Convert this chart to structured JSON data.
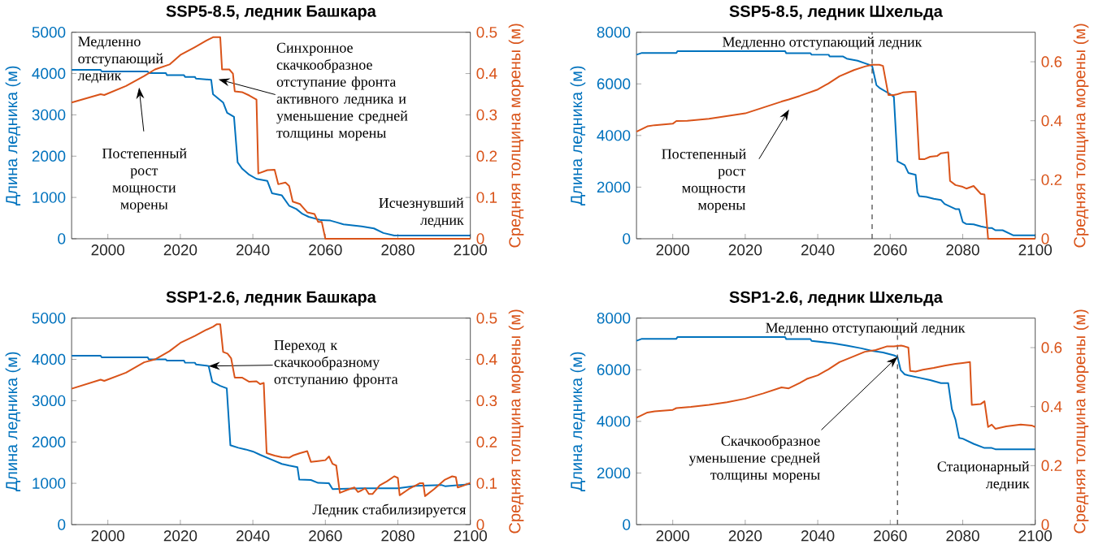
{
  "chart_data": [
    {
      "type": "line",
      "title": "SSP5-8.5, ледник Башкара",
      "ylabel": "Длина ледника (м)",
      "y2label": "Средняя толщина морены (м)",
      "xlim": [
        1990,
        2100
      ],
      "xticks": [
        2000,
        2020,
        2040,
        2060,
        2080,
        2100
      ],
      "ylim": [
        0,
        5000
      ],
      "yticks": [
        0,
        1000,
        2000,
        3000,
        4000,
        5000
      ],
      "y2lim": [
        0,
        0.5
      ],
      "y2ticks": [
        0,
        0.1,
        0.2,
        0.3,
        0.4,
        0.5
      ],
      "series": [
        {
          "color": "#0072bd",
          "x": [
            1990,
            1998,
            1998.3,
            2011,
            2011.3,
            2016,
            2016.3,
            2021,
            2021.3,
            2024,
            2024.3,
            2028.5,
            2029,
            2031.8,
            2032.9,
            2034.8,
            2035.8,
            2037,
            2039,
            2041,
            2044,
            2045.3,
            2048,
            2050,
            2052,
            2053.7,
            2055.4,
            2058.8,
            2061.4,
            2063,
            2065,
            2070,
            2073.4,
            2076,
            2079,
            2100
          ],
          "values": [
            4090,
            4090,
            4050,
            4050,
            4010,
            4010,
            3960,
            3960,
            3920,
            3920,
            3880,
            3850,
            3500,
            3300,
            3050,
            2950,
            1850,
            1700,
            1550,
            1450,
            1400,
            1100,
            1050,
            800,
            720,
            600,
            530,
            450,
            440,
            400,
            350,
            300,
            250,
            140,
            80,
            80
          ]
        },
        {
          "color": "#d95319",
          "axis": "y2",
          "x": [
            1990,
            1998,
            1999,
            2005,
            2010,
            2013,
            2017,
            2020,
            2024,
            2027,
            2029,
            2031,
            2031.5,
            2033.5,
            2034.5,
            2035,
            2037,
            2039,
            2041,
            2041.5,
            2044,
            2046,
            2047,
            2049,
            2050,
            2051,
            2053,
            2055,
            2057,
            2058,
            2059,
            2060,
            2100
          ],
          "values": [
            0.33,
            0.35,
            0.348,
            0.37,
            0.394,
            0.41,
            0.422,
            0.445,
            0.464,
            0.479,
            0.488,
            0.488,
            0.41,
            0.41,
            0.4,
            0.357,
            0.355,
            0.347,
            0.337,
            0.158,
            0.166,
            0.167,
            0.132,
            0.136,
            0.128,
            0.09,
            0.084,
            0.064,
            0.06,
            0.041,
            0.041,
            0,
            0
          ]
        }
      ],
      "annotations": [
        "Медленно отступающий ледник",
        "Постепенный рост мощности морены",
        "Синхронное скачкообразное отступание фронта активного ледника и уменьшение средней толщины морены",
        "Исчезнувший ледник"
      ]
    },
    {
      "type": "line",
      "title": "SSP5-8.5, ледник Шхельда",
      "ylabel": "Длина ледника (м)",
      "y2label": "Средняя толщина морены (м)",
      "xlim": [
        1990,
        2100
      ],
      "xticks": [
        2000,
        2020,
        2040,
        2060,
        2080,
        2100
      ],
      "ylim": [
        0,
        8000
      ],
      "yticks": [
        0,
        2000,
        4000,
        6000,
        8000
      ],
      "y2lim": [
        0,
        0.7
      ],
      "y2ticks": [
        0,
        0.2,
        0.4,
        0.6
      ],
      "series": [
        {
          "color": "#0072bd",
          "x": [
            1990,
            1991.5,
            2001,
            2001.3,
            2031,
            2031.3,
            2038,
            2038.3,
            2043,
            2043.3,
            2047,
            2048,
            2051,
            2053,
            2055,
            2056.2,
            2057,
            2060,
            2061,
            2062,
            2064,
            2065,
            2067,
            2067.5,
            2068,
            2070,
            2072,
            2074,
            2075,
            2078,
            2079,
            2080,
            2081,
            2083,
            2085,
            2087,
            2088,
            2089,
            2091,
            2094,
            2100
          ],
          "values": [
            7130,
            7200,
            7200,
            7270,
            7270,
            7190,
            7190,
            7130,
            7130,
            7060,
            7060,
            6980,
            6900,
            6800,
            6700,
            5950,
            5850,
            5600,
            5500,
            3000,
            2850,
            2550,
            2480,
            1800,
            1650,
            1620,
            1550,
            1500,
            1350,
            1150,
            1150,
            650,
            570,
            560,
            480,
            420,
            420,
            330,
            330,
            130,
            130
          ]
        },
        {
          "color": "#d95319",
          "axis": "y2",
          "x": [
            1990,
            1993,
            1995,
            2000,
            2001,
            2004,
            2010,
            2015,
            2020,
            2025,
            2030,
            2032,
            2035,
            2040,
            2043,
            2046,
            2050,
            2053,
            2055,
            2057,
            2058,
            2059.5,
            2061,
            2062,
            2063.5,
            2066,
            2067,
            2068,
            2069.5,
            2071,
            2073,
            2074,
            2076,
            2076.5,
            2078,
            2080,
            2081,
            2083,
            2085,
            2086,
            2087,
            2100
          ],
          "values": [
            0.363,
            0.381,
            0.385,
            0.39,
            0.399,
            0.4,
            0.407,
            0.416,
            0.425,
            0.445,
            0.465,
            0.472,
            0.484,
            0.506,
            0.527,
            0.551,
            0.572,
            0.584,
            0.59,
            0.59,
            0.586,
            0.487,
            0.487,
            0.49,
            0.496,
            0.498,
            0.498,
            0.27,
            0.27,
            0.278,
            0.281,
            0.29,
            0.293,
            0.196,
            0.182,
            0.176,
            0.17,
            0.179,
            0.152,
            0.15,
            0,
            0
          ]
        }
      ],
      "ref_lines": [
        {
          "axis": "x",
          "value": 2055,
          "color": "#404040",
          "line_style": "dashed"
        }
      ],
      "annotations": [
        "Медленно отступающий ледник",
        "Постепенный рост мощности морены"
      ]
    },
    {
      "type": "line",
      "title": "SSP1-2.6, ледник Башкара",
      "ylabel": "Длина ледника (м)",
      "y2label": "Средняя толщина морены (м)",
      "xlim": [
        1990,
        2100
      ],
      "xticks": [
        2000,
        2020,
        2040,
        2060,
        2080,
        2100
      ],
      "ylim": [
        0,
        5000
      ],
      "yticks": [
        0,
        1000,
        2000,
        3000,
        4000,
        5000
      ],
      "y2lim": [
        0,
        0.5
      ],
      "y2ticks": [
        0,
        0.1,
        0.2,
        0.3,
        0.4,
        0.5
      ],
      "series": [
        {
          "color": "#0072bd",
          "x": [
            1990,
            1998,
            1998.3,
            2011,
            2011.3,
            2016,
            2016.3,
            2021,
            2021.3,
            2024,
            2024.3,
            2027.8,
            2028.8,
            2031,
            2032.8,
            2033.8,
            2036,
            2038,
            2040,
            2042,
            2045,
            2048,
            2050,
            2052.3,
            2052.8,
            2056,
            2058,
            2061,
            2062,
            2070,
            2080,
            2085,
            2092,
            2093,
            2100
          ],
          "values": [
            4090,
            4090,
            4050,
            4050,
            4000,
            4000,
            3970,
            3970,
            3920,
            3920,
            3880,
            3840,
            3460,
            3360,
            3300,
            1920,
            1860,
            1820,
            1770,
            1690,
            1580,
            1470,
            1430,
            1390,
            1090,
            1080,
            1010,
            1000,
            860,
            880,
            880,
            940,
            960,
            930,
            980
          ]
        },
        {
          "color": "#d95319",
          "axis": "y2",
          "x": [
            1990,
            1998,
            1999,
            2005,
            2010,
            2013,
            2017,
            2020,
            2024,
            2027,
            2029,
            2030,
            2031,
            2031.8,
            2033,
            2034,
            2035,
            2037,
            2039,
            2041,
            2042,
            2043,
            2043.8,
            2046,
            2048,
            2050,
            2051,
            2053,
            2055,
            2056,
            2058,
            2060,
            2061,
            2062,
            2063,
            2064,
            2066,
            2068,
            2069,
            2070,
            2071,
            2072,
            2073,
            2075,
            2077,
            2079,
            2080,
            2080.5,
            2083,
            2086,
            2087,
            2087.5,
            2090,
            2093,
            2095,
            2096,
            2096.5,
            2098,
            2100
          ],
          "values": [
            0.329,
            0.351,
            0.348,
            0.368,
            0.393,
            0.4,
            0.42,
            0.44,
            0.457,
            0.471,
            0.479,
            0.485,
            0.485,
            0.418,
            0.414,
            0.403,
            0.356,
            0.356,
            0.346,
            0.347,
            0.34,
            0.343,
            0.173,
            0.167,
            0.163,
            0.162,
            0.167,
            0.173,
            0.178,
            0.152,
            0.154,
            0.156,
            0.165,
            0.147,
            0.143,
            0.077,
            0.084,
            0.09,
            0.079,
            0.083,
            0.088,
            0.074,
            0.074,
            0.095,
            0.105,
            0.117,
            0.113,
            0.071,
            0.086,
            0.1,
            0.1,
            0.069,
            0.086,
            0.109,
            0.117,
            0.115,
            0.09,
            0.094,
            0.101
          ]
        }
      ],
      "annotations": [
        {
          "text": "Переход к скачкообразному отступанию фронта",
          "x": 2027.8,
          "y": 3840
        },
        "Ледник стабилизируется"
      ]
    },
    {
      "type": "line",
      "title": "SSP1-2.6, ледник Шхельда",
      "ylabel": "Длина ледника (м)",
      "y2label": "Средняя толщина морены (м)",
      "xlim": [
        1990,
        2100
      ],
      "xticks": [
        2000,
        2020,
        2040,
        2060,
        2080,
        2100
      ],
      "ylim": [
        0,
        8000
      ],
      "yticks": [
        0,
        2000,
        4000,
        6000,
        8000
      ],
      "y2lim": [
        0,
        0.7
      ],
      "y2ticks": [
        0,
        0.2,
        0.4,
        0.6
      ],
      "series": [
        {
          "color": "#0072bd",
          "x": [
            1990,
            1991.5,
            2001,
            2001.3,
            2031,
            2031.3,
            2038,
            2038.3,
            2044,
            2048,
            2052,
            2055,
            2058,
            2061,
            2062,
            2062.9,
            2064,
            2065,
            2068,
            2071,
            2074,
            2076,
            2077,
            2078,
            2079,
            2080,
            2083,
            2086,
            2088,
            2089,
            2100
          ],
          "values": [
            7120,
            7200,
            7200,
            7270,
            7270,
            7190,
            7190,
            7120,
            7030,
            6940,
            6830,
            6730,
            6670,
            6560,
            6500,
            5980,
            5820,
            5780,
            5690,
            5600,
            5480,
            5480,
            4480,
            4070,
            3360,
            3330,
            3130,
            2970,
            2970,
            2920,
            2920
          ]
        },
        {
          "color": "#d95319",
          "axis": "y2",
          "x": [
            1990,
            1993,
            1995,
            2000,
            2001,
            2005,
            2010,
            2015,
            2020,
            2025,
            2030,
            2032,
            2035,
            2037,
            2040,
            2043,
            2046,
            2050,
            2053,
            2056,
            2059,
            2061,
            2063,
            2064,
            2065,
            2065.5,
            2067,
            2069,
            2072,
            2075,
            2078,
            2080,
            2082,
            2082.5,
            2085,
            2086,
            2087,
            2088,
            2089,
            2092,
            2096,
            2099,
            2100
          ],
          "values": [
            0.362,
            0.38,
            0.384,
            0.389,
            0.395,
            0.399,
            0.406,
            0.415,
            0.427,
            0.445,
            0.465,
            0.462,
            0.48,
            0.494,
            0.506,
            0.527,
            0.551,
            0.571,
            0.586,
            0.592,
            0.604,
            0.604,
            0.607,
            0.604,
            0.6,
            0.521,
            0.519,
            0.525,
            0.531,
            0.539,
            0.545,
            0.548,
            0.551,
            0.406,
            0.409,
            0.418,
            0.331,
            0.339,
            0.325,
            0.333,
            0.339,
            0.336,
            0.331
          ]
        }
      ],
      "ref_lines": [
        {
          "axis": "x",
          "value": 2062,
          "color": "#404040",
          "line_style": "dashed"
        }
      ],
      "annotations": [
        "Медленно отступающий ледник",
        {
          "text": "Скачкообразное уменьшение средней толщины морены",
          "x": 2062,
          "y": 6500
        },
        "Стационарный ледник"
      ]
    }
  ]
}
